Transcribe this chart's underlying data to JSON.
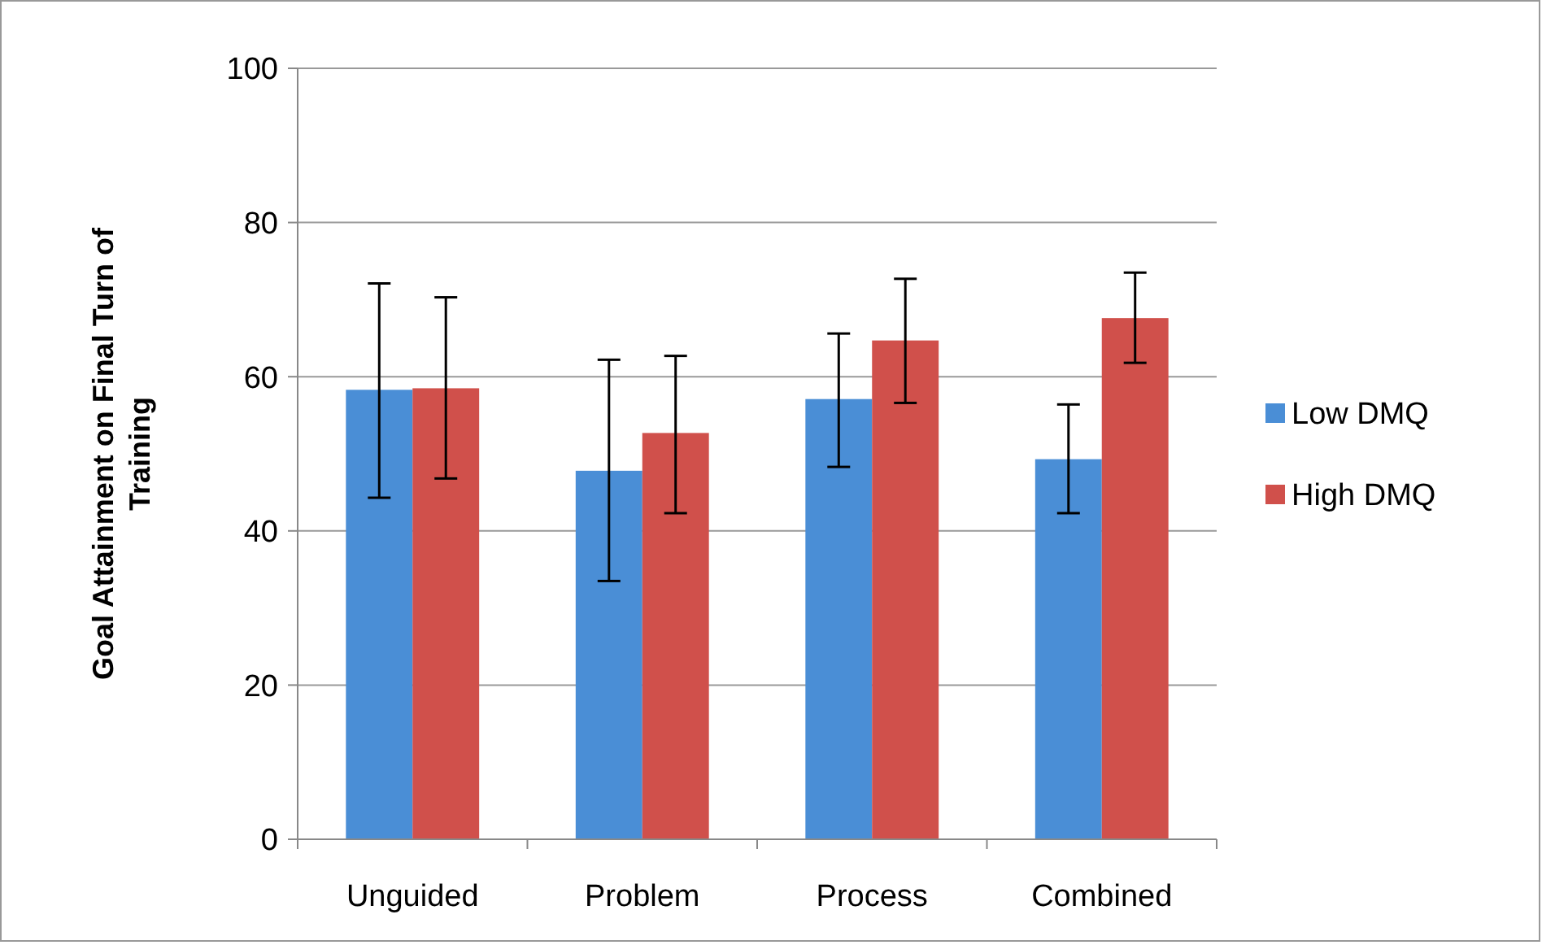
{
  "chart_data": {
    "type": "bar",
    "ylabel": "Goal Attainment on Final Turn of Training",
    "categories": [
      "Unguided",
      "Problem",
      "Process",
      "Combined"
    ],
    "series": [
      {
        "name": "Low DMQ",
        "color": "#4a8ed6",
        "values": [
          58.3,
          47.8,
          57.1,
          49.3
        ],
        "errors": [
          [
            44.3,
            72.1
          ],
          [
            33.5,
            62.2
          ],
          [
            48.3,
            65.6
          ],
          [
            42.3,
            56.4
          ]
        ]
      },
      {
        "name": "High DMQ",
        "color": "#d0504b",
        "values": [
          58.5,
          52.7,
          64.7,
          67.6
        ],
        "errors": [
          [
            46.8,
            70.3
          ],
          [
            42.3,
            62.7
          ],
          [
            56.6,
            72.7
          ],
          [
            61.8,
            73.5
          ]
        ]
      }
    ],
    "ylim": [
      0,
      100
    ],
    "yticks": [
      0,
      20,
      40,
      60,
      80,
      100
    ],
    "grid": "y",
    "legend": "right"
  }
}
